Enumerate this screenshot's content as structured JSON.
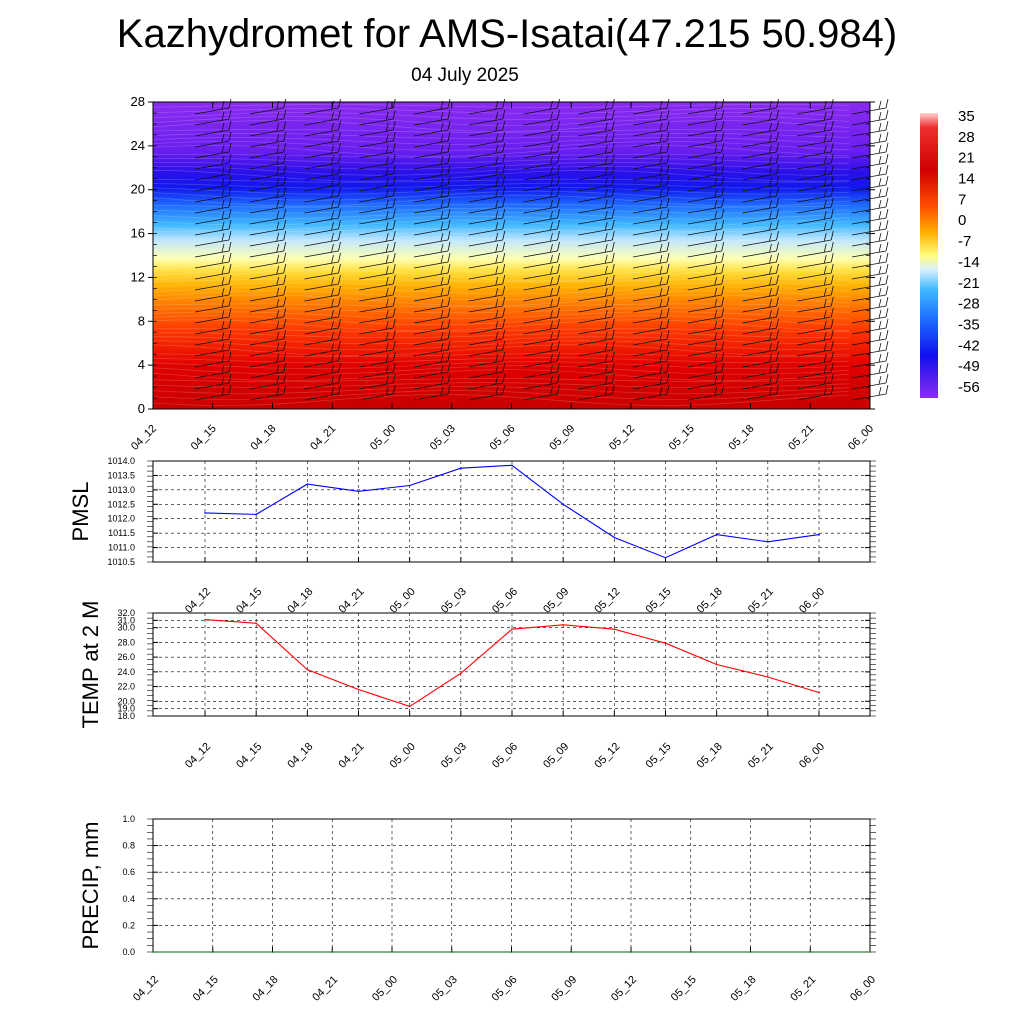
{
  "header": {
    "title": "Kazhydromet for AMS-Isatai(47.215 50.984)",
    "date": "04 July 2025"
  },
  "chart_data": [
    {
      "type": "heatmap",
      "title": "",
      "ylim": [
        0,
        28
      ],
      "y_ticks": [
        "0",
        "4",
        "8",
        "12",
        "16",
        "20",
        "24",
        "28"
      ],
      "x_ticks": [
        "04_12",
        "04_15",
        "04_18",
        "04_21",
        "05_00",
        "05_03",
        "05_06",
        "05_09",
        "05_12",
        "05_15",
        "05_18",
        "05_21",
        "06_00"
      ],
      "colorbar_labels": [
        "35",
        "28",
        "21",
        "14",
        "7",
        "0",
        "-7",
        "-14",
        "-21",
        "-28",
        "-35",
        "-42",
        "-49",
        "-56"
      ],
      "overlay": "wind barbs",
      "colors": {
        "warm": "#d40000",
        "neutral": "#ffffa0",
        "cold": "#1020f0",
        "top": "#8a2be2"
      }
    },
    {
      "type": "line",
      "ylabel": "PMSL",
      "ylim": [
        1010.5,
        1014.0
      ],
      "y_ticks": [
        "1010.5",
        "1011.0",
        "1011.5",
        "1012.0",
        "1012.5",
        "1013.0",
        "1013.5",
        "1014.0"
      ],
      "categories": [
        "04_12",
        "04_15",
        "04_18",
        "04_21",
        "05_00",
        "05_03",
        "05_06",
        "05_09",
        "05_12",
        "05_15",
        "05_18",
        "05_21",
        "06_00"
      ],
      "series": [
        {
          "values": [
            1012.2,
            1012.15,
            1013.2,
            1012.95,
            1013.15,
            1013.75,
            1013.85,
            1012.5,
            1011.35,
            1010.65,
            1011.45,
            1011.2,
            1011.45
          ],
          "color": "#0000ff"
        }
      ],
      "grid": true
    },
    {
      "type": "line",
      "ylabel": "TEMP at 2 M",
      "ylim": [
        18.0,
        32.0
      ],
      "y_ticks": [
        "18.0",
        "19.0",
        "20.0",
        "22.0",
        "24.0",
        "26.0",
        "28.0",
        "30.0",
        "31.0",
        "32.0"
      ],
      "categories": [
        "04_12",
        "04_15",
        "04_18",
        "04_21",
        "05_00",
        "05_03",
        "05_06",
        "05_09",
        "05_12",
        "05_15",
        "05_18",
        "05_21",
        "06_00"
      ],
      "series": [
        {
          "values": [
            31.1,
            30.6,
            24.3,
            21.6,
            19.3,
            23.8,
            29.8,
            30.4,
            29.8,
            27.9,
            25.0,
            23.3,
            21.2
          ],
          "color": "#ff0000"
        }
      ],
      "grid": true
    },
    {
      "type": "line",
      "ylabel": "PRECIP, mm",
      "ylim": [
        0.0,
        1.0
      ],
      "y_ticks": [
        "0.0",
        "0.2",
        "0.4",
        "0.6",
        "0.8",
        "1.0"
      ],
      "categories": [
        "04_12",
        "04_15",
        "04_18",
        "04_21",
        "05_00",
        "05_03",
        "05_06",
        "05_09",
        "05_12",
        "05_15",
        "05_18",
        "05_21",
        "06_00"
      ],
      "series": [
        {
          "values": [
            0,
            0,
            0,
            0,
            0,
            0,
            0,
            0,
            0,
            0,
            0,
            0,
            0
          ],
          "color": "#006400"
        }
      ],
      "grid": true
    }
  ]
}
